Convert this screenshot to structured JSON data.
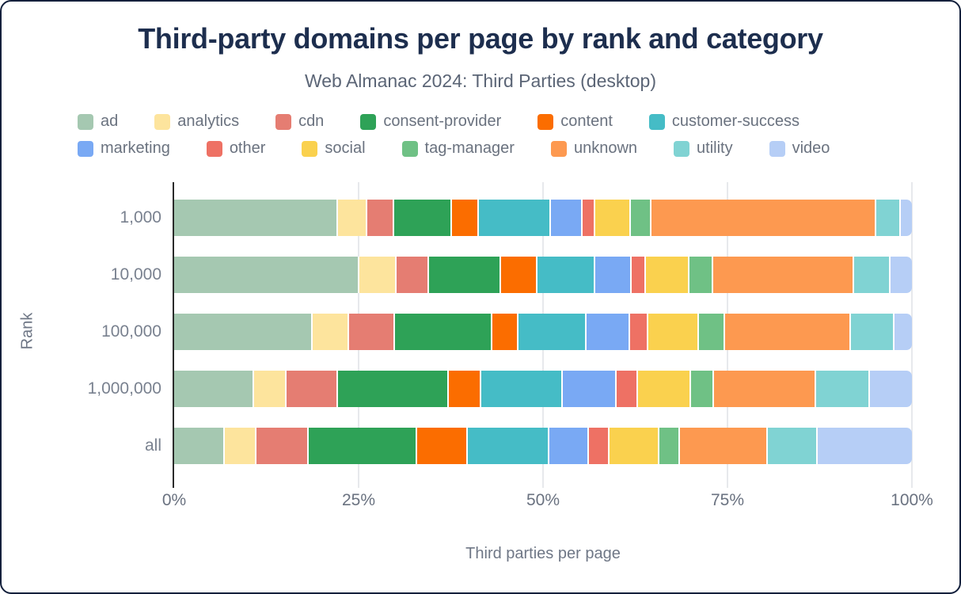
{
  "title": "Third-party domains per page by rank and category",
  "subtitle": "Web Almanac 2024: Third Parties (desktop)",
  "colors": {
    "ad": "#a5c8b1",
    "analytics": "#fde49d",
    "cdn": "#e57d72",
    "consent-provider": "#2ea257",
    "content": "#fb6d00",
    "customer-success": "#45bcc6",
    "marketing": "#79a9f4",
    "other": "#ee7164",
    "social": "#fad14e",
    "tag-manager": "#6fc185",
    "unknown": "#fd9950",
    "utility": "#80d3d3",
    "video": "#b6cef6"
  },
  "chart_data": {
    "type": "bar",
    "orientation": "horizontal-stacked-100",
    "xlabel": "Third parties per page",
    "ylabel": "Rank",
    "x_ticks": [
      {
        "pct": 0,
        "label": "0%"
      },
      {
        "pct": 25,
        "label": "25%"
      },
      {
        "pct": 50,
        "label": "50%"
      },
      {
        "pct": 75,
        "label": "75%"
      },
      {
        "pct": 100,
        "label": "100%"
      }
    ],
    "categories": [
      "ad",
      "analytics",
      "cdn",
      "consent-provider",
      "content",
      "customer-success",
      "marketing",
      "other",
      "social",
      "tag-manager",
      "unknown",
      "utility",
      "video"
    ],
    "rows": [
      {
        "label": "1,000",
        "values": [
          22.5,
          3.9,
          3.5,
          7.8,
          3.6,
          9.7,
          4.2,
          1.6,
          4.7,
          2.6,
          31.1,
          3.2,
          1.5
        ]
      },
      {
        "label": "10,000",
        "values": [
          25.5,
          5.0,
          4.2,
          9.8,
          4.9,
          7.7,
          4.9,
          1.7,
          5.9,
          3.0,
          19.4,
          4.8,
          3.0
        ]
      },
      {
        "label": "100,000",
        "values": [
          19.0,
          4.9,
          6.2,
          13.3,
          3.4,
          9.3,
          5.8,
          2.3,
          6.8,
          3.4,
          17.3,
          5.9,
          2.4
        ]
      },
      {
        "label": "1,000,000",
        "values": [
          10.9,
          4.3,
          7.0,
          15.2,
          4.3,
          11.2,
          7.2,
          2.8,
          7.2,
          2.9,
          14.1,
          7.2,
          5.9
        ]
      },
      {
        "label": "all",
        "values": [
          6.9,
          4.1,
          7.1,
          14.9,
          6.9,
          11.1,
          5.3,
          2.7,
          6.7,
          2.7,
          12.0,
          6.7,
          13.2
        ]
      }
    ]
  }
}
